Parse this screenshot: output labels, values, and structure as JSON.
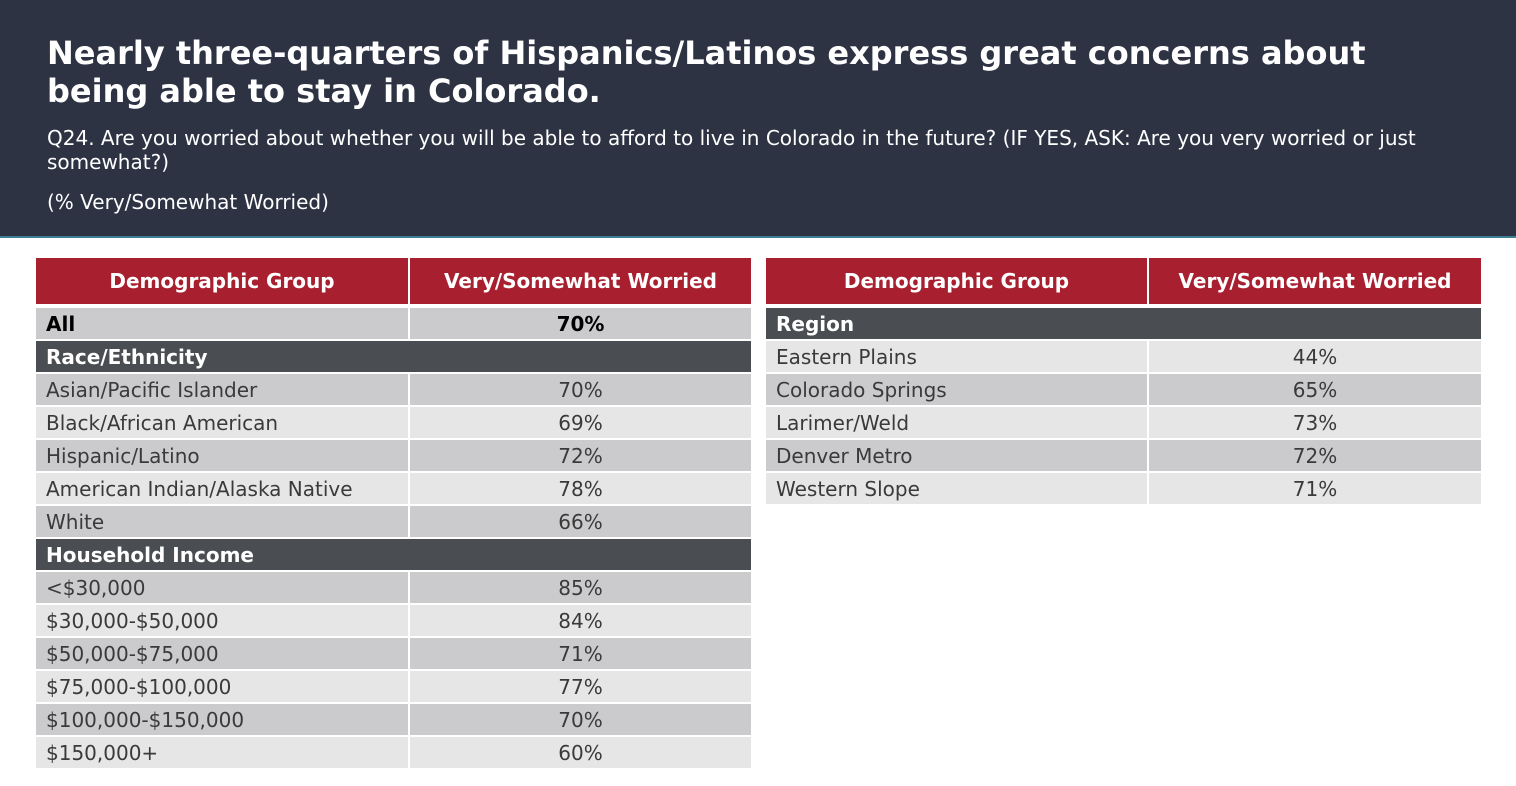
{
  "header": {
    "title": "Nearly three-quarters of Hispanics/Latinos express great concerns about being able to stay in Colorado.",
    "question": "Q24. Are you worried about whether you will be able to afford to live in Colorado in the future? (IF YES, ASK: Are you very worried or just somewhat?)",
    "subtitle": "(% Very/Somewhat Worried)"
  },
  "columns": [
    "Demographic Group",
    "Very/Somewhat Worried"
  ],
  "left": {
    "all": {
      "label": "All",
      "value": "70%"
    },
    "race": {
      "label": "Race/Ethnicity",
      "rows": [
        [
          "Asian/Pacific Islander",
          "70%"
        ],
        [
          "Black/African American",
          "69%"
        ],
        [
          "Hispanic/Latino",
          "72%"
        ],
        [
          "American Indian/Alaska Native",
          "78%"
        ],
        [
          "White",
          "66%"
        ]
      ]
    },
    "income": {
      "label": "Household Income",
      "rows": [
        [
          "<$30,000",
          "85%"
        ],
        [
          "$30,000-$50,000",
          "84%"
        ],
        [
          "$50,000-$75,000",
          "71%"
        ],
        [
          "$75,000-$100,000",
          "77%"
        ],
        [
          "$100,000-$150,000",
          "70%"
        ],
        [
          "$150,000+",
          "60%"
        ]
      ]
    }
  },
  "right": {
    "region": {
      "label": "Region",
      "rows": [
        [
          "Eastern Plains",
          "44%"
        ],
        [
          "Colorado Springs",
          "65%"
        ],
        [
          "Larimer/Weld",
          "73%"
        ],
        [
          "Denver Metro",
          "72%"
        ],
        [
          "Western Slope",
          "71%"
        ]
      ]
    }
  }
}
